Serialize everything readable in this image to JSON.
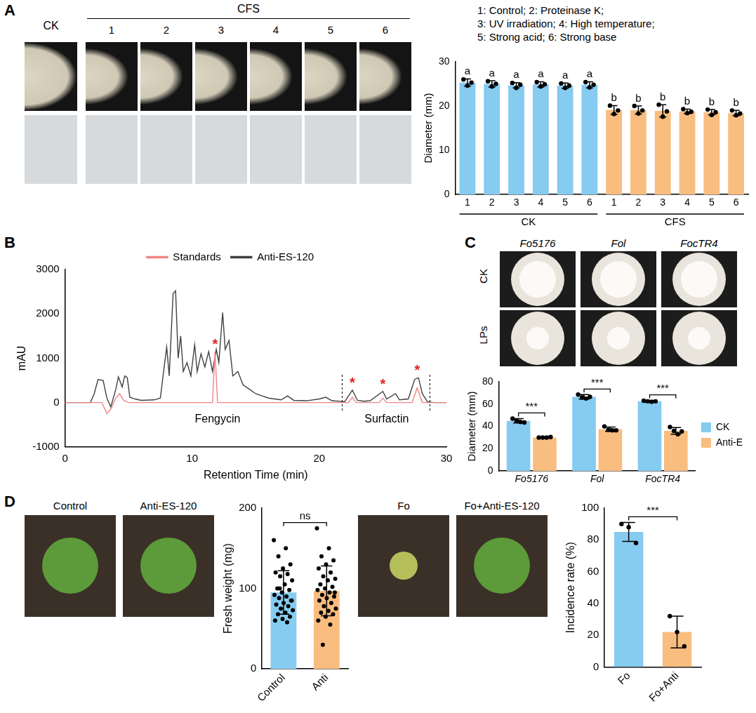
{
  "panels": {
    "A": {
      "letter": "A",
      "images": {
        "first_column": "CK",
        "group": "CFS",
        "group_columns": [
          "1",
          "2",
          "3",
          "4",
          "5",
          "6"
        ]
      },
      "key": [
        "1: Control; 2: Proteinase K;",
        "3: UV irradiation; 4: High temperature;",
        "5: Strong acid; 6: Strong base"
      ]
    },
    "B": {
      "letter": "B"
    },
    "C": {
      "letter": "C",
      "images": {
        "columns": [
          "Fo5176",
          "Fol",
          "FocTR4"
        ],
        "rows": [
          "CK",
          "LPs"
        ]
      }
    },
    "D": {
      "letter": "D",
      "images": [
        {
          "labels": [
            "Control",
            "Anti-ES-120"
          ]
        },
        {
          "labels": [
            "Fo",
            "Fo+Anti-ES-120"
          ]
        }
      ]
    }
  },
  "chart_data": [
    {
      "type": "bar",
      "y_label": "Diameter (mm)",
      "categories": [
        "1",
        "2",
        "3",
        "4",
        "5",
        "6",
        "1",
        "2",
        "3",
        "4",
        "5",
        "6"
      ],
      "group_of": [
        "CK",
        "CK",
        "CK",
        "CK",
        "CK",
        "CK",
        "CFS",
        "CFS",
        "CFS",
        "CFS",
        "CFS",
        "CFS"
      ],
      "values": [
        25.3,
        25.0,
        24.7,
        24.9,
        24.6,
        24.8,
        19.1,
        19.1,
        18.9,
        18.8,
        18.6,
        18.4
      ],
      "errors": [
        0.8,
        0.7,
        0.6,
        0.6,
        0.6,
        0.7,
        1.0,
        0.9,
        1.4,
        0.5,
        0.6,
        0.6
      ],
      "points": [
        [
          26.0,
          24.6,
          25.3
        ],
        [
          25.6,
          24.4,
          25.0
        ],
        [
          25.2,
          24.1,
          24.8
        ],
        [
          25.4,
          24.4,
          24.9
        ],
        [
          25.1,
          24.1,
          24.6
        ],
        [
          25.4,
          24.2,
          24.8
        ],
        [
          20.1,
          18.2,
          19.0
        ],
        [
          20.0,
          18.3,
          19.0
        ],
        [
          20.3,
          17.6,
          18.8
        ],
        [
          19.3,
          18.4,
          18.7
        ],
        [
          19.2,
          18.0,
          18.6
        ],
        [
          19.0,
          17.9,
          18.3
        ]
      ],
      "colors": [
        "#86cbf0",
        "#86cbf0",
        "#86cbf0",
        "#86cbf0",
        "#86cbf0",
        "#86cbf0",
        "#f9bd80",
        "#f9bd80",
        "#f9bd80",
        "#f9bd80",
        "#f9bd80",
        "#f9bd80"
      ],
      "letters": [
        "a",
        "a",
        "a",
        "a",
        "a",
        "a",
        "b",
        "b",
        "b",
        "b",
        "b",
        "b"
      ],
      "ylim": [
        0,
        30
      ],
      "yticks": [
        0,
        10,
        20,
        30
      ],
      "grid": false
    },
    {
      "type": "line",
      "x_label": "Retention Time (min)",
      "y_label": "mAU",
      "series": [
        {
          "name": "Standards",
          "color": "#f08585",
          "x": [
            0,
            2.9,
            3.3,
            3.6,
            4.0,
            4.3,
            4.6,
            5.0,
            11.6,
            11.8,
            12.0,
            22.3,
            22.6,
            22.9,
            24.7,
            25.0,
            25.3,
            27.3,
            27.7,
            28.1,
            30
          ],
          "values": [
            0,
            0,
            -250,
            -150,
            100,
            200,
            50,
            0,
            0,
            1150,
            0,
            0,
            120,
            0,
            0,
            100,
            0,
            0,
            330,
            0,
            0
          ]
        },
        {
          "name": "Anti-ES-120",
          "color": "#404040",
          "x": [
            0,
            1,
            2,
            2.3,
            2.6,
            3.0,
            3.3,
            3.6,
            4.0,
            4.2,
            4.5,
            4.7,
            4.9,
            5.1,
            5.5,
            6,
            7,
            7.5,
            7.8,
            8.0,
            8.2,
            8.5,
            8.7,
            8.9,
            9.1,
            9.3,
            9.6,
            9.9,
            10.2,
            10.4,
            10.7,
            11.0,
            11.3,
            11.6,
            11.9,
            12.1,
            12.4,
            12.6,
            12.9,
            13.2,
            13.6,
            14,
            14.5,
            15,
            15.5,
            16,
            17,
            17.5,
            18,
            19,
            20,
            20.5,
            21,
            22,
            22.6,
            23,
            23.5,
            24,
            25,
            25.3,
            26,
            26.3,
            27,
            27.5,
            27.8,
            28.1,
            28.5,
            29,
            30
          ],
          "values": [
            0,
            0,
            0,
            200,
            520,
            500,
            100,
            -100,
            300,
            580,
            350,
            600,
            560,
            120,
            80,
            50,
            60,
            100,
            800,
            1250,
            600,
            2450,
            2520,
            1000,
            1500,
            700,
            900,
            600,
            1300,
            700,
            1100,
            800,
            1150,
            700,
            1200,
            900,
            2030,
            1200,
            1400,
            600,
            700,
            400,
            300,
            200,
            150,
            100,
            60,
            150,
            50,
            40,
            80,
            120,
            40,
            20,
            280,
            50,
            30,
            40,
            250,
            80,
            200,
            60,
            80,
            520,
            560,
            200,
            20,
            0,
            0
          ]
        }
      ],
      "annotations": [
        {
          "x": 11.8,
          "y": 1300,
          "text": "*"
        },
        {
          "x": 22.6,
          "y": 430,
          "text": "*"
        },
        {
          "x": 25.0,
          "y": 400,
          "text": "*"
        },
        {
          "x": 27.7,
          "y": 720,
          "text": "*"
        },
        {
          "x": 12,
          "y": -380,
          "text": "Fengycin"
        },
        {
          "x": 25.3,
          "y": -380,
          "text": "Surfactin"
        }
      ],
      "dividers": [
        21.8,
        28.7
      ],
      "xlim": [
        0,
        30
      ],
      "xticks": [
        0,
        10,
        20,
        30
      ],
      "ylim": [
        -1000,
        3000
      ],
      "yticks": [
        -1000,
        0,
        1000,
        2000,
        3000
      ],
      "legend": "top",
      "grid": false
    },
    {
      "type": "bar",
      "y_label": "Diameter (mm)",
      "categories": [
        "Fo5176",
        "Fol",
        "FocTR4"
      ],
      "series": [
        {
          "name": "CK",
          "color": "#86cbf0",
          "values": [
            45,
            66.5,
            62.5
          ],
          "errors": [
            2,
            2,
            0.8
          ],
          "points": [
            [
              47,
              45,
              44,
              43.5
            ],
            [
              68.5,
              66,
              65,
              66.5
            ],
            [
              63,
              62.5,
              62,
              62.5
            ]
          ]
        },
        {
          "name": "Anti-E",
          "color": "#f9bd80",
          "values": [
            30,
            37.5,
            36
          ],
          "errors": [
            0.3,
            2,
            3
          ],
          "points": [
            [
              30,
              30,
              30,
              30.5
            ],
            [
              40,
              37,
              36.5,
              36.5
            ],
            [
              39.5,
              36,
              33,
              35.5
            ]
          ]
        }
      ],
      "significance": [
        "***",
        "***",
        "***"
      ],
      "ylim": [
        0,
        80
      ],
      "yticks": [
        0,
        20,
        40,
        60,
        80
      ],
      "legend": "right",
      "grid": false
    },
    {
      "type": "bar",
      "y_label": "Fresh weight (mg)",
      "categories": [
        "Control",
        "Anti"
      ],
      "values": [
        95,
        97
      ],
      "errors": [
        27,
        31
      ],
      "points": [
        [
          160,
          150,
          140,
          130,
          125,
          120,
          118,
          115,
          110,
          105,
          100,
          98,
          95,
          92,
          90,
          88,
          85,
          82,
          80,
          78,
          75,
          73,
          70,
          68,
          65,
          62,
          60,
          58,
          100,
          85
        ],
        [
          175,
          150,
          140,
          135,
          130,
          125,
          120,
          115,
          112,
          110,
          105,
          102,
          100,
          98,
          95,
          92,
          90,
          88,
          85,
          82,
          78,
          75,
          72,
          70,
          68,
          65,
          60,
          55,
          30,
          95
        ]
      ],
      "colors": [
        "#86cbf0",
        "#f9bd80"
      ],
      "significance": [
        "ns"
      ],
      "ylim": [
        0,
        200
      ],
      "yticks": [
        0,
        100,
        200
      ],
      "grid": false
    },
    {
      "type": "bar",
      "y_label": "Incidence rate (%)",
      "categories": [
        "Fo",
        "Fo+Anti"
      ],
      "values": [
        85,
        22
      ],
      "errors": [
        6,
        10
      ],
      "points": [
        [
          90,
          88,
          78
        ],
        [
          32,
          22,
          13
        ]
      ],
      "colors": [
        "#86cbf0",
        "#f9bd80"
      ],
      "significance": [
        "***"
      ],
      "ylim": [
        0,
        100
      ],
      "yticks": [
        0,
        20,
        40,
        60,
        80,
        100
      ],
      "grid": false
    }
  ]
}
